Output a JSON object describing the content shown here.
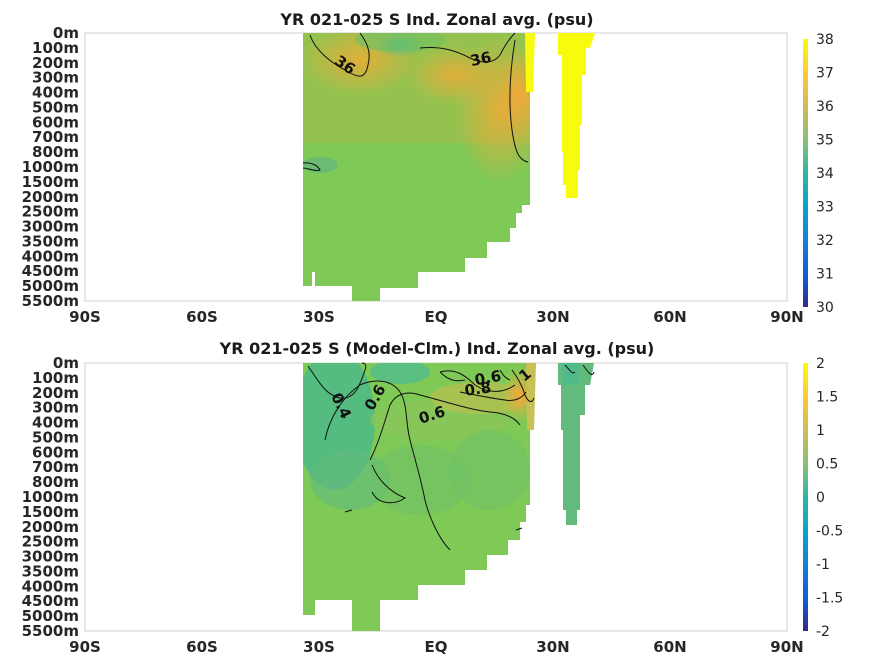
{
  "charts": [
    {
      "title": "YR 021-025 S Ind. Zonal avg. (psu)",
      "colorbar": {
        "ticks": [
          "30",
          "31",
          "32",
          "33",
          "34",
          "35",
          "36",
          "37",
          "38"
        ]
      },
      "contour_labels": [
        "36",
        "36"
      ]
    },
    {
      "title": "YR 021-025 S (Model-Clm.) Ind. Zonal avg. (psu)",
      "colorbar": {
        "ticks": [
          "-2",
          "-1.5",
          "-1",
          "-0.5",
          "0",
          "0.5",
          "1",
          "1.5",
          "2"
        ]
      },
      "contour_labels": [
        "0.4",
        "0.6",
        "0.6",
        "0.6",
        "0.8",
        "1"
      ]
    }
  ],
  "x_ticks": [
    "90S",
    "60S",
    "30S",
    "EQ",
    "30N",
    "60N",
    "90N"
  ],
  "y_ticks": [
    "0m",
    "100m",
    "200m",
    "300m",
    "400m",
    "500m",
    "600m",
    "700m",
    "800m",
    "1000m",
    "1500m",
    "2000m",
    "2500m",
    "3000m",
    "3500m",
    "4000m",
    "4500m",
    "5000m",
    "5500m"
  ],
  "chart_data": [
    {
      "type": "heatmap",
      "title": "YR 021-025 S Ind. Zonal avg. (psu)",
      "x_range": [
        -90,
        90
      ],
      "depth_levels_m": [
        0,
        100,
        200,
        300,
        400,
        500,
        600,
        700,
        800,
        1000,
        1500,
        2000,
        2500,
        3000,
        3500,
        4000,
        4500,
        5000,
        5500
      ],
      "color_range": [
        30,
        38
      ],
      "colormap": "parula",
      "contour_levels": [
        36
      ],
      "profiles": [
        {
          "lat": -35,
          "values": [
            35.6,
            35.4,
            35.2,
            35.0,
            34.9,
            34.8,
            34.7,
            34.6,
            34.5,
            34.5,
            34.7,
            34.8,
            34.8,
            34.8,
            34.8,
            34.8,
            34.8
          ]
        },
        {
          "lat": -20,
          "values": [
            36.0,
            36.0,
            35.9,
            35.6,
            35.3,
            35.1,
            34.9,
            34.8,
            34.7,
            34.7,
            34.7,
            34.8,
            34.8,
            34.8,
            34.8,
            34.8,
            34.8,
            34.8,
            34.8
          ]
        },
        {
          "lat": 0,
          "values": [
            35.3,
            35.4,
            35.6,
            35.4,
            35.2,
            35.1,
            35.0,
            34.9,
            34.9,
            34.9,
            34.8,
            34.8,
            34.8,
            34.8,
            34.8,
            34.8
          ]
        },
        {
          "lat": 20,
          "values": [
            35.9,
            36.0,
            36.1,
            36.1,
            36.0,
            35.8,
            35.5,
            35.3,
            35.2,
            35.0,
            34.8,
            34.8
          ]
        },
        {
          "lat": 35,
          "values": [
            38,
            38,
            38,
            38,
            38,
            38,
            38,
            38,
            38,
            38,
            38,
            38
          ]
        }
      ]
    },
    {
      "type": "heatmap",
      "title": "YR 021-025 S (Model-Clm.) Ind. Zonal avg. (psu)",
      "x_range": [
        -90,
        90
      ],
      "depth_levels_m": [
        0,
        100,
        200,
        300,
        400,
        500,
        600,
        700,
        800,
        1000,
        1500,
        2000,
        2500,
        3000,
        3500,
        4000,
        4500,
        5000,
        5500
      ],
      "color_range": [
        -2,
        2
      ],
      "colormap": "parula",
      "contour_levels": [
        0.4,
        0.6,
        0.8,
        1
      ],
      "profiles": [
        {
          "lat": -35,
          "values": [
            0.3,
            0.3,
            0.3,
            0.3,
            0.35,
            0.4,
            0.4,
            0.4,
            0.45,
            0.5,
            0.55,
            0.55,
            0.55,
            0.55,
            0.55,
            0.55,
            0.55
          ]
        },
        {
          "lat": -20,
          "values": [
            0.5,
            0.6,
            0.7,
            0.7,
            0.6,
            0.5,
            0.45,
            0.45,
            0.45,
            0.5,
            0.6,
            0.6,
            0.6,
            0.6,
            0.6,
            0.6,
            0.6,
            0.6,
            0.6
          ]
        },
        {
          "lat": 0,
          "values": [
            0.5,
            0.6,
            0.7,
            0.8,
            0.65,
            0.55,
            0.5,
            0.45,
            0.5,
            0.55,
            0.6,
            0.6,
            0.6,
            0.6,
            0.6,
            0.6
          ]
        },
        {
          "lat": 20,
          "values": [
            0.6,
            0.8,
            1.0,
            1.1,
            0.9,
            0.7,
            0.55,
            0.5,
            0.5,
            0.55,
            0.6,
            0.6
          ]
        },
        {
          "lat": 35,
          "values": [
            0.3,
            0.3,
            0.3,
            0.4,
            0.4,
            0.45,
            0.45,
            0.45,
            0.45,
            0.5,
            0.55,
            0.55
          ]
        }
      ]
    }
  ]
}
